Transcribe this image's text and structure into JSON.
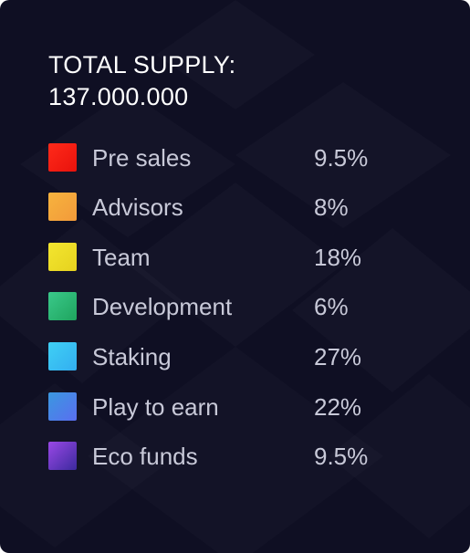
{
  "supply": {
    "heading": "TOTAL SUPPLY:",
    "amount": "137.000.000"
  },
  "allocations": [
    {
      "label": "Pre sales",
      "value": "9.5%",
      "gradient_from": "#ff2a1a",
      "gradient_to": "#e8120c",
      "icon": "pre-sales-swatch"
    },
    {
      "label": "Advisors",
      "value": "8%",
      "gradient_from": "#f7b33e",
      "gradient_to": "#f29a3a",
      "icon": "advisors-swatch"
    },
    {
      "label": "Team",
      "value": "18%",
      "gradient_from": "#f3e62f",
      "gradient_to": "#e6d21f",
      "icon": "team-swatch"
    },
    {
      "label": "Development",
      "value": "6%",
      "gradient_from": "#3ac98a",
      "gradient_to": "#1fa45e",
      "icon": "development-swatch"
    },
    {
      "label": "Staking",
      "value": "27%",
      "gradient_from": "#3fd0f5",
      "gradient_to": "#33aef0",
      "icon": "staking-swatch"
    },
    {
      "label": "Play to earn",
      "value": "22%",
      "gradient_from": "#3a98e0",
      "gradient_to": "#5a6ef0",
      "icon": "play-to-earn-swatch"
    },
    {
      "label": "Eco funds",
      "value": "9.5%",
      "gradient_from": "#9a48e6",
      "gradient_to": "#3c2a9e",
      "icon": "eco-funds-swatch"
    }
  ]
}
